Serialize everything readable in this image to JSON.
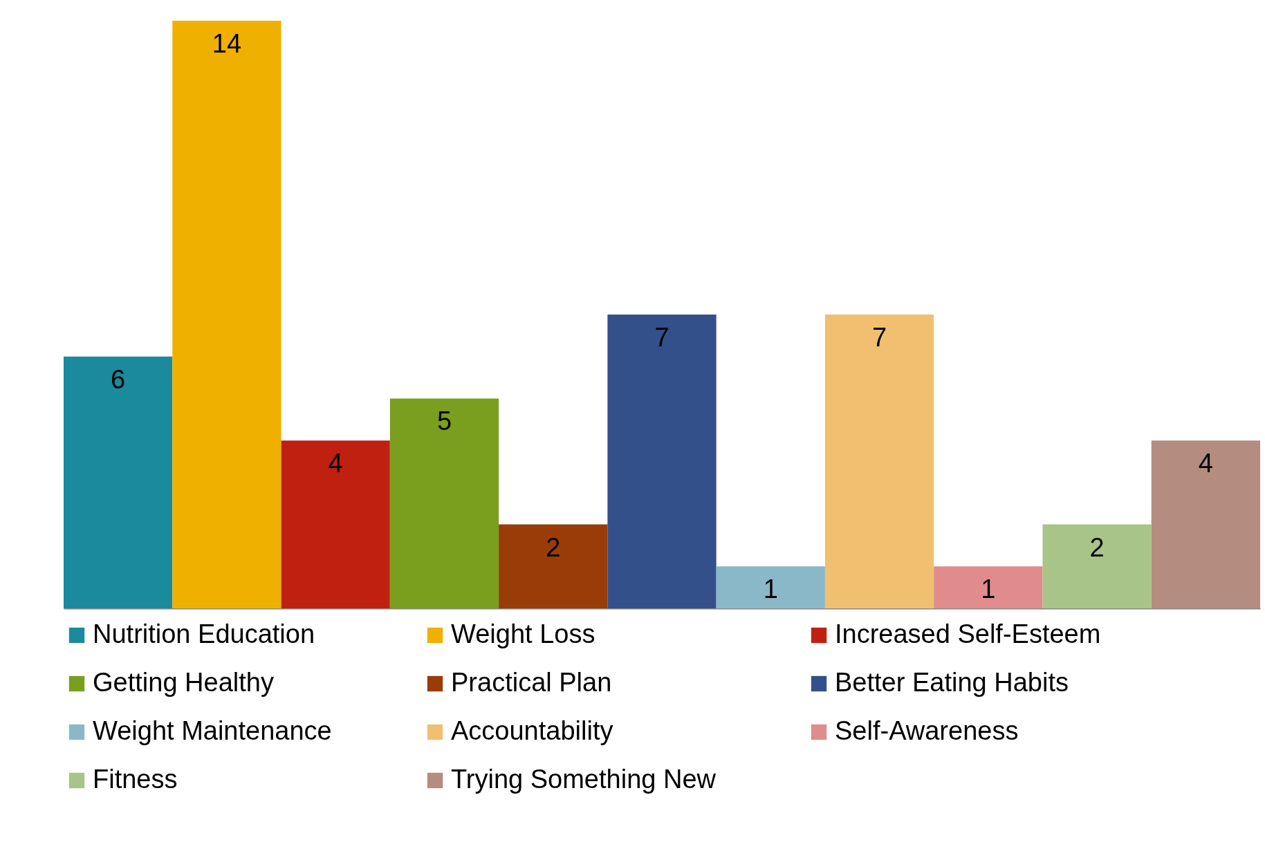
{
  "chart_data": {
    "type": "bar",
    "categories": [
      null
    ],
    "series": [
      {
        "name": "Nutrition Education",
        "color": "#1a8a9c",
        "values": [
          6
        ]
      },
      {
        "name": "Weight Loss",
        "color": "#f0b000",
        "values": [
          14
        ]
      },
      {
        "name": "Increased Self-Esteem",
        "color": "#c02010",
        "values": [
          4
        ]
      },
      {
        "name": "Getting Healthy",
        "color": "#7a9e1e",
        "values": [
          5
        ]
      },
      {
        "name": "Practical Plan",
        "color": "#9a3c08",
        "values": [
          2
        ]
      },
      {
        "name": "Better Eating Habits",
        "color": "#34508a",
        "values": [
          7
        ]
      },
      {
        "name": "Weight Maintenance",
        "color": "#8ab8c8",
        "values": [
          1
        ]
      },
      {
        "name": "Accountability",
        "color": "#f0c070",
        "values": [
          7
        ]
      },
      {
        "name": "Self-Awareness",
        "color": "#e08c8c",
        "values": [
          1
        ]
      },
      {
        "name": "Fitness",
        "color": "#a8c488",
        "values": [
          2
        ]
      },
      {
        "name": "Trying Something New",
        "color": "#b48c80",
        "values": [
          4
        ]
      }
    ],
    "data_labels": true,
    "legend": "bottom"
  }
}
